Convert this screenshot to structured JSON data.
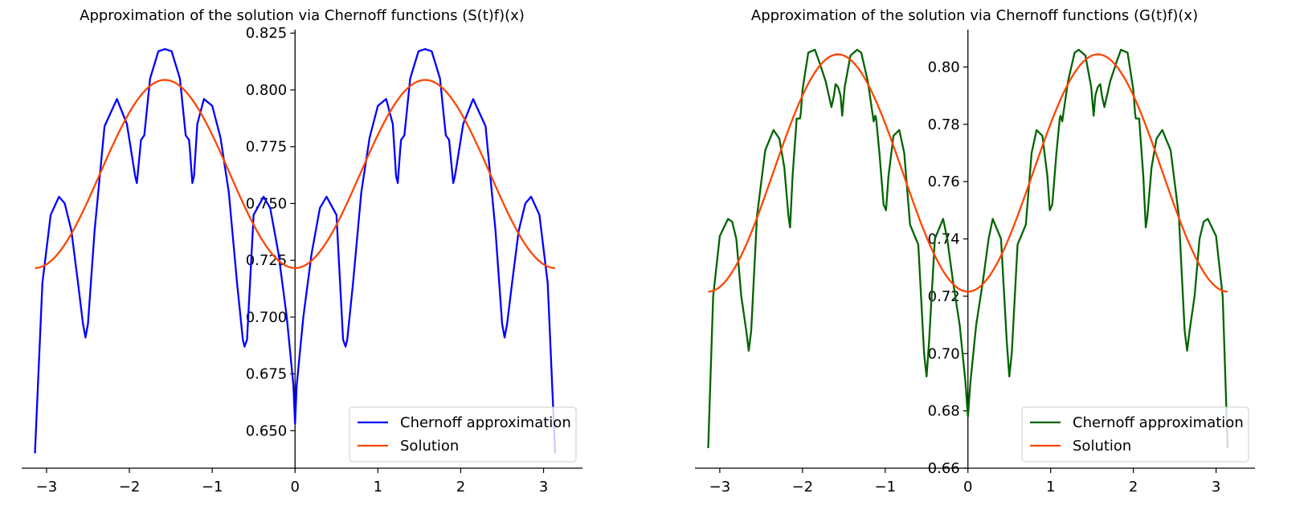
{
  "colors": {
    "chernoff_left": "#0000ff",
    "chernoff_right": "#006400",
    "solution": "#ff4500",
    "axis": "#000000",
    "legend_border": "#cccccc"
  },
  "chart_data": [
    {
      "type": "line",
      "title": "Approximation of the solution via Chernoff functions (S(t)f)(x)",
      "xlabel": "",
      "ylabel": "",
      "xlim": [
        -3.3,
        3.47
      ],
      "ylim": [
        0.6335,
        0.8265
      ],
      "xticks": [
        -3,
        -2,
        -1,
        0,
        1,
        2,
        3
      ],
      "xtick_labels": [
        "−3",
        "−2",
        "−1",
        "0",
        "1",
        "2",
        "3"
      ],
      "yticks": [
        0.65,
        0.675,
        0.7,
        0.725,
        0.75,
        0.775,
        0.8,
        0.825
      ],
      "ytick_labels": [
        "0.650",
        "0.675",
        "0.700",
        "0.725",
        "0.750",
        "0.775",
        "0.800",
        "0.825"
      ],
      "grid": false,
      "spines": "centered",
      "legend": {
        "placement": "lower-right"
      },
      "series": [
        {
          "name": "Chernoff approximation",
          "color": "#0000ff",
          "x": [
            -3.14,
            -3.05,
            -2.95,
            -2.85,
            -2.78,
            -2.7,
            -2.62,
            -2.56,
            -2.53,
            -2.5,
            -2.42,
            -2.3,
            -2.15,
            -2.03,
            -1.93,
            -1.91,
            -1.87,
            -1.86,
            -1.84,
            -1.82,
            -1.75,
            -1.65,
            -1.57,
            -1.49,
            -1.39,
            -1.32,
            -1.3,
            -1.28,
            -1.27,
            -1.24,
            -1.22,
            -1.18,
            -1.1,
            -1.0,
            -0.9,
            -0.8,
            -0.7,
            -0.63,
            -0.61,
            -0.58,
            -0.5,
            -0.38,
            -0.3,
            -0.2,
            -0.1,
            -0.02,
            0.0,
            0.02,
            0.1,
            0.2,
            0.3,
            0.38,
            0.5,
            0.58,
            0.61,
            0.63,
            0.7,
            0.8,
            0.9,
            1.0,
            1.1,
            1.18,
            1.22,
            1.24,
            1.27,
            1.28,
            1.3,
            1.32,
            1.39,
            1.49,
            1.57,
            1.65,
            1.75,
            1.82,
            1.84,
            1.86,
            1.87,
            1.91,
            1.93,
            2.03,
            2.15,
            2.3,
            2.42,
            2.5,
            2.53,
            2.56,
            2.62,
            2.7,
            2.78,
            2.85,
            2.95,
            3.05,
            3.14
          ],
          "y": [
            0.64,
            0.715,
            0.745,
            0.753,
            0.75,
            0.738,
            0.715,
            0.697,
            0.691,
            0.697,
            0.738,
            0.784,
            0.796,
            0.785,
            0.762,
            0.759,
            0.774,
            0.778,
            0.779,
            0.78,
            0.805,
            0.817,
            0.818,
            0.817,
            0.805,
            0.78,
            0.779,
            0.778,
            0.774,
            0.759,
            0.762,
            0.785,
            0.796,
            0.793,
            0.779,
            0.755,
            0.715,
            0.69,
            0.687,
            0.69,
            0.745,
            0.753,
            0.748,
            0.728,
            0.7,
            0.67,
            0.653,
            0.67,
            0.7,
            0.728,
            0.748,
            0.753,
            0.745,
            0.69,
            0.687,
            0.69,
            0.715,
            0.755,
            0.779,
            0.793,
            0.796,
            0.785,
            0.762,
            0.759,
            0.774,
            0.778,
            0.779,
            0.78,
            0.805,
            0.817,
            0.818,
            0.817,
            0.805,
            0.78,
            0.779,
            0.778,
            0.774,
            0.759,
            0.762,
            0.785,
            0.796,
            0.784,
            0.738,
            0.697,
            0.691,
            0.697,
            0.715,
            0.738,
            0.75,
            0.753,
            0.745,
            0.715,
            0.64
          ]
        },
        {
          "name": "Solution",
          "color": "#ff4500",
          "function": "0.763 - 0.0414*cos(2x)",
          "x_range": [
            -3.14,
            3.14
          ]
        }
      ]
    },
    {
      "type": "line",
      "title": "Approximation of the solution via Chernoff functions (G(t)f)(x)",
      "xlabel": "",
      "ylabel": "",
      "xlim": [
        -3.3,
        3.47
      ],
      "ylim": [
        0.66,
        0.813
      ],
      "xticks": [
        -3,
        -2,
        -1,
        0,
        1,
        2,
        3
      ],
      "xtick_labels": [
        "−3",
        "−2",
        "−1",
        "0",
        "1",
        "2",
        "3"
      ],
      "yticks": [
        0.66,
        0.68,
        0.7,
        0.72,
        0.74,
        0.76,
        0.78,
        0.8
      ],
      "ytick_labels": [
        "0.66",
        "0.68",
        "0.70",
        "0.72",
        "0.74",
        "0.76",
        "0.78",
        "0.80"
      ],
      "grid": false,
      "spines": "centered",
      "legend": {
        "placement": "lower-right"
      },
      "series": [
        {
          "name": "Chernoff approximation",
          "color": "#006400",
          "x": [
            -3.14,
            -3.08,
            -3.0,
            -2.9,
            -2.85,
            -2.8,
            -2.74,
            -2.68,
            -2.65,
            -2.62,
            -2.55,
            -2.45,
            -2.35,
            -2.28,
            -2.22,
            -2.17,
            -2.15,
            -2.12,
            -2.07,
            -2.03,
            -2.02,
            -2.0,
            -1.93,
            -1.85,
            -1.8,
            -1.72,
            -1.65,
            -1.62,
            -1.6,
            -1.57,
            -1.54,
            -1.52,
            -1.49,
            -1.42,
            -1.34,
            -1.29,
            -1.21,
            -1.14,
            -1.12,
            -1.11,
            -1.07,
            -1.02,
            -0.99,
            -0.96,
            -0.9,
            -0.83,
            -0.77,
            -0.7,
            -0.6,
            -0.53,
            -0.5,
            -0.47,
            -0.4,
            -0.3,
            -0.25,
            -0.18,
            -0.1,
            -0.03,
            0.0,
            0.03,
            0.1,
            0.18,
            0.25,
            0.3,
            0.4,
            0.47,
            0.5,
            0.53,
            0.6,
            0.7,
            0.77,
            0.83,
            0.9,
            0.96,
            0.99,
            1.02,
            1.07,
            1.11,
            1.12,
            1.14,
            1.21,
            1.29,
            1.34,
            1.42,
            1.49,
            1.52,
            1.54,
            1.57,
            1.6,
            1.62,
            1.65,
            1.72,
            1.8,
            1.85,
            1.93,
            2.0,
            2.02,
            2.03,
            2.07,
            2.12,
            2.15,
            2.17,
            2.22,
            2.28,
            2.35,
            2.45,
            2.55,
            2.62,
            2.65,
            2.68,
            2.74,
            2.8,
            2.85,
            2.9,
            3.0,
            3.08,
            3.14
          ],
          "y": [
            0.667,
            0.72,
            0.741,
            0.747,
            0.746,
            0.74,
            0.72,
            0.708,
            0.701,
            0.708,
            0.748,
            0.771,
            0.778,
            0.775,
            0.765,
            0.748,
            0.744,
            0.762,
            0.782,
            0.782,
            0.784,
            0.792,
            0.805,
            0.806,
            0.802,
            0.795,
            0.786,
            0.79,
            0.794,
            0.793,
            0.79,
            0.783,
            0.793,
            0.804,
            0.806,
            0.805,
            0.795,
            0.781,
            0.783,
            0.782,
            0.77,
            0.752,
            0.75,
            0.762,
            0.776,
            0.778,
            0.77,
            0.745,
            0.738,
            0.7,
            0.692,
            0.704,
            0.74,
            0.747,
            0.74,
            0.725,
            0.71,
            0.69,
            0.678,
            0.69,
            0.71,
            0.725,
            0.74,
            0.747,
            0.74,
            0.704,
            0.692,
            0.7,
            0.738,
            0.745,
            0.77,
            0.778,
            0.776,
            0.762,
            0.75,
            0.752,
            0.77,
            0.782,
            0.783,
            0.781,
            0.795,
            0.805,
            0.806,
            0.804,
            0.793,
            0.783,
            0.79,
            0.793,
            0.794,
            0.79,
            0.786,
            0.795,
            0.802,
            0.806,
            0.805,
            0.792,
            0.784,
            0.782,
            0.782,
            0.762,
            0.744,
            0.748,
            0.765,
            0.775,
            0.778,
            0.771,
            0.748,
            0.708,
            0.701,
            0.708,
            0.72,
            0.74,
            0.746,
            0.747,
            0.741,
            0.72,
            0.667
          ]
        },
        {
          "name": "Solution",
          "color": "#ff4500",
          "function": "0.763 - 0.0414*cos(2x)",
          "x_range": [
            -3.14,
            3.14
          ]
        }
      ]
    }
  ]
}
